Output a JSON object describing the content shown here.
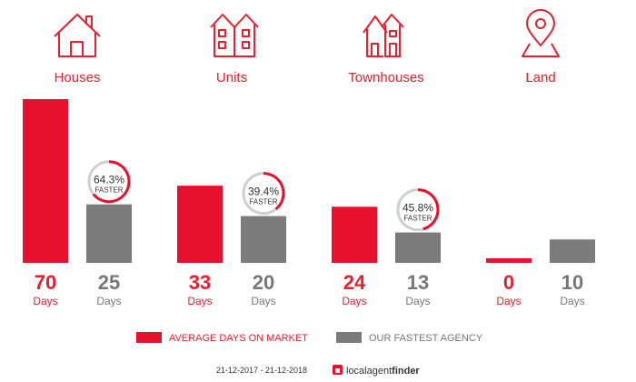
{
  "colors": {
    "market": "#e8112d",
    "agency": "#7b7b7b",
    "text_red": "#e8202e",
    "text_grey": "#777777",
    "ring_track": "#cfcfcf"
  },
  "categories": [
    {
      "label": "Houses",
      "icon": "house-icon"
    },
    {
      "label": "Units",
      "icon": "units-icon"
    },
    {
      "label": "Townhouses",
      "icon": "townhouses-icon"
    },
    {
      "label": "Land",
      "icon": "land-pin-icon"
    }
  ],
  "chart_data": {
    "type": "bar",
    "categories": [
      "Houses",
      "Units",
      "Townhouses",
      "Land"
    ],
    "series": [
      {
        "name": "AVERAGE DAYS ON MARKET",
        "values": [
          70,
          33,
          24,
          0
        ]
      },
      {
        "name": "OUR FASTEST AGENCY",
        "values": [
          25,
          20,
          13,
          10
        ]
      }
    ],
    "unit_label": "Days",
    "badges": [
      {
        "category": "Houses",
        "percent": "64.3%",
        "fraction": 0.643,
        "text": "FASTER"
      },
      {
        "category": "Units",
        "percent": "39.4%",
        "fraction": 0.394,
        "text": "FASTER"
      },
      {
        "category": "Townhouses",
        "percent": "45.8%",
        "fraction": 0.458,
        "text": "FASTER"
      }
    ],
    "ylim": [
      0,
      70
    ]
  },
  "legend": {
    "market_label": "AVERAGE DAYS ON MARKET",
    "agency_label": "OUR FASTEST AGENCY"
  },
  "footer": {
    "date_range": "21-12-2017 - 21-12-2018",
    "brand_local": "localagent",
    "brand_finder": "finder"
  }
}
